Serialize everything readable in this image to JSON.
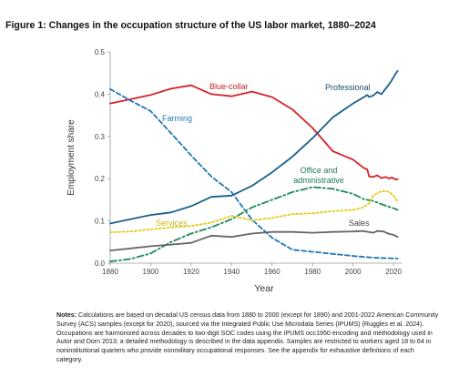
{
  "figure": {
    "title": "Figure 1: Changes in the occupation structure of the US labor market, 1880–2024",
    "notes_label": "Notes:",
    "notes_text": " Calculations are based on decadal US census data from 1880 to 2000 (except for 1890) and 2001-2022 American Community Survey (ACS) samples (except for 2020), sourced via the Integrated Public Use Microdata Series (IPUMS) (Ruggles et al. 2024). Occupations are harmonized across decades to two-digit SOC codes using the IPUMS occ1950 encoding and methodology used in Autor and Dorn 2013; a detailed methodology is described in the data appendix. Samples are restricted to workers aged 18 to 64 in noninstitutional quarters who provide nonmilitary occupational responses. See the appendix for exhaustive definitions of each category."
  },
  "chart_data": {
    "type": "line",
    "title": "Figure 1: Changes in the occupation structure of the US labor market, 1880–2024",
    "xlabel": "Year",
    "ylabel": "Employment share",
    "xlim": [
      1880,
      2024
    ],
    "ylim": [
      0,
      0.5
    ],
    "x_ticks": [
      "1880",
      "1900",
      "1920",
      "1940",
      "1960",
      "1980",
      "2000",
      "2020"
    ],
    "y_ticks": [
      "0.0",
      "0.1",
      "0.2",
      "0.3",
      "0.4",
      "0.5"
    ],
    "grid": false,
    "legend": "inline labels",
    "series": [
      {
        "name": "Blue-collar",
        "color": "#d2232a",
        "style": "solid",
        "points": [
          [
            1880,
            0.378
          ],
          [
            1890,
            0.388
          ],
          [
            1900,
            0.398
          ],
          [
            1910,
            0.413
          ],
          [
            1920,
            0.421
          ],
          [
            1930,
            0.4
          ],
          [
            1940,
            0.395
          ],
          [
            1950,
            0.406
          ],
          [
            1960,
            0.393
          ],
          [
            1970,
            0.364
          ],
          [
            1980,
            0.32
          ],
          [
            1990,
            0.265
          ],
          [
            2000,
            0.245
          ],
          [
            2005,
            0.226
          ],
          [
            2007,
            0.222
          ],
          [
            2008,
            0.205
          ],
          [
            2010,
            0.204
          ],
          [
            2012,
            0.208
          ],
          [
            2014,
            0.201
          ],
          [
            2016,
            0.204
          ],
          [
            2018,
            0.2
          ],
          [
            2019,
            0.203
          ],
          [
            2021,
            0.198
          ],
          [
            2022,
            0.199
          ]
        ]
      },
      {
        "name": "Professional",
        "color": "#1a5e8c",
        "style": "solid",
        "points": [
          [
            1880,
            0.094
          ],
          [
            1890,
            0.104
          ],
          [
            1900,
            0.114
          ],
          [
            1910,
            0.12
          ],
          [
            1920,
            0.135
          ],
          [
            1930,
            0.157
          ],
          [
            1940,
            0.16
          ],
          [
            1950,
            0.183
          ],
          [
            1960,
            0.215
          ],
          [
            1970,
            0.252
          ],
          [
            1980,
            0.296
          ],
          [
            1990,
            0.345
          ],
          [
            2000,
            0.378
          ],
          [
            2005,
            0.392
          ],
          [
            2007,
            0.398
          ],
          [
            2008,
            0.393
          ],
          [
            2010,
            0.397
          ],
          [
            2012,
            0.405
          ],
          [
            2014,
            0.4
          ],
          [
            2016,
            0.412
          ],
          [
            2018,
            0.425
          ],
          [
            2019,
            0.432
          ],
          [
            2021,
            0.448
          ],
          [
            2022,
            0.455
          ]
        ]
      },
      {
        "name": "Farming",
        "color": "#1f77b4",
        "style": "dashed",
        "points": [
          [
            1880,
            0.412
          ],
          [
            1890,
            0.385
          ],
          [
            1900,
            0.36
          ],
          [
            1910,
            0.308
          ],
          [
            1920,
            0.255
          ],
          [
            1930,
            0.205
          ],
          [
            1940,
            0.168
          ],
          [
            1950,
            0.103
          ],
          [
            1960,
            0.06
          ],
          [
            1970,
            0.032
          ],
          [
            1980,
            0.027
          ],
          [
            1990,
            0.022
          ],
          [
            2000,
            0.017
          ],
          [
            2010,
            0.013
          ],
          [
            2022,
            0.011
          ]
        ]
      },
      {
        "name": "Office and administrative",
        "color": "#1e8a5a",
        "style": "dashdot",
        "points": [
          [
            1880,
            0.004
          ],
          [
            1890,
            0.01
          ],
          [
            1900,
            0.023
          ],
          [
            1910,
            0.05
          ],
          [
            1920,
            0.07
          ],
          [
            1930,
            0.085
          ],
          [
            1940,
            0.104
          ],
          [
            1950,
            0.132
          ],
          [
            1960,
            0.15
          ],
          [
            1970,
            0.168
          ],
          [
            1980,
            0.18
          ],
          [
            1990,
            0.176
          ],
          [
            2000,
            0.164
          ],
          [
            2005,
            0.152
          ],
          [
            2010,
            0.147
          ],
          [
            2015,
            0.138
          ],
          [
            2020,
            0.13
          ],
          [
            2022,
            0.126
          ]
        ]
      },
      {
        "name": "Services",
        "color": "#e0cc1a",
        "style": "dotted",
        "points": [
          [
            1880,
            0.073
          ],
          [
            1890,
            0.075
          ],
          [
            1900,
            0.08
          ],
          [
            1910,
            0.085
          ],
          [
            1920,
            0.088
          ],
          [
            1930,
            0.096
          ],
          [
            1940,
            0.112
          ],
          [
            1950,
            0.101
          ],
          [
            1960,
            0.107
          ],
          [
            1970,
            0.116
          ],
          [
            1980,
            0.118
          ],
          [
            1990,
            0.123
          ],
          [
            2000,
            0.126
          ],
          [
            2005,
            0.132
          ],
          [
            2008,
            0.142
          ],
          [
            2010,
            0.16
          ],
          [
            2012,
            0.166
          ],
          [
            2014,
            0.17
          ],
          [
            2016,
            0.171
          ],
          [
            2018,
            0.168
          ],
          [
            2020,
            0.16
          ],
          [
            2022,
            0.145
          ]
        ]
      },
      {
        "name": "Sales",
        "color": "#666666",
        "style": "solid",
        "points": [
          [
            1880,
            0.03
          ],
          [
            1890,
            0.035
          ],
          [
            1900,
            0.04
          ],
          [
            1910,
            0.044
          ],
          [
            1920,
            0.048
          ],
          [
            1930,
            0.065
          ],
          [
            1940,
            0.062
          ],
          [
            1950,
            0.07
          ],
          [
            1960,
            0.074
          ],
          [
            1970,
            0.074
          ],
          [
            1980,
            0.072
          ],
          [
            1990,
            0.074
          ],
          [
            2000,
            0.075
          ],
          [
            2005,
            0.076
          ],
          [
            2010,
            0.072
          ],
          [
            2012,
            0.076
          ],
          [
            2015,
            0.075
          ],
          [
            2018,
            0.069
          ],
          [
            2020,
            0.067
          ],
          [
            2022,
            0.062
          ]
        ]
      }
    ]
  }
}
